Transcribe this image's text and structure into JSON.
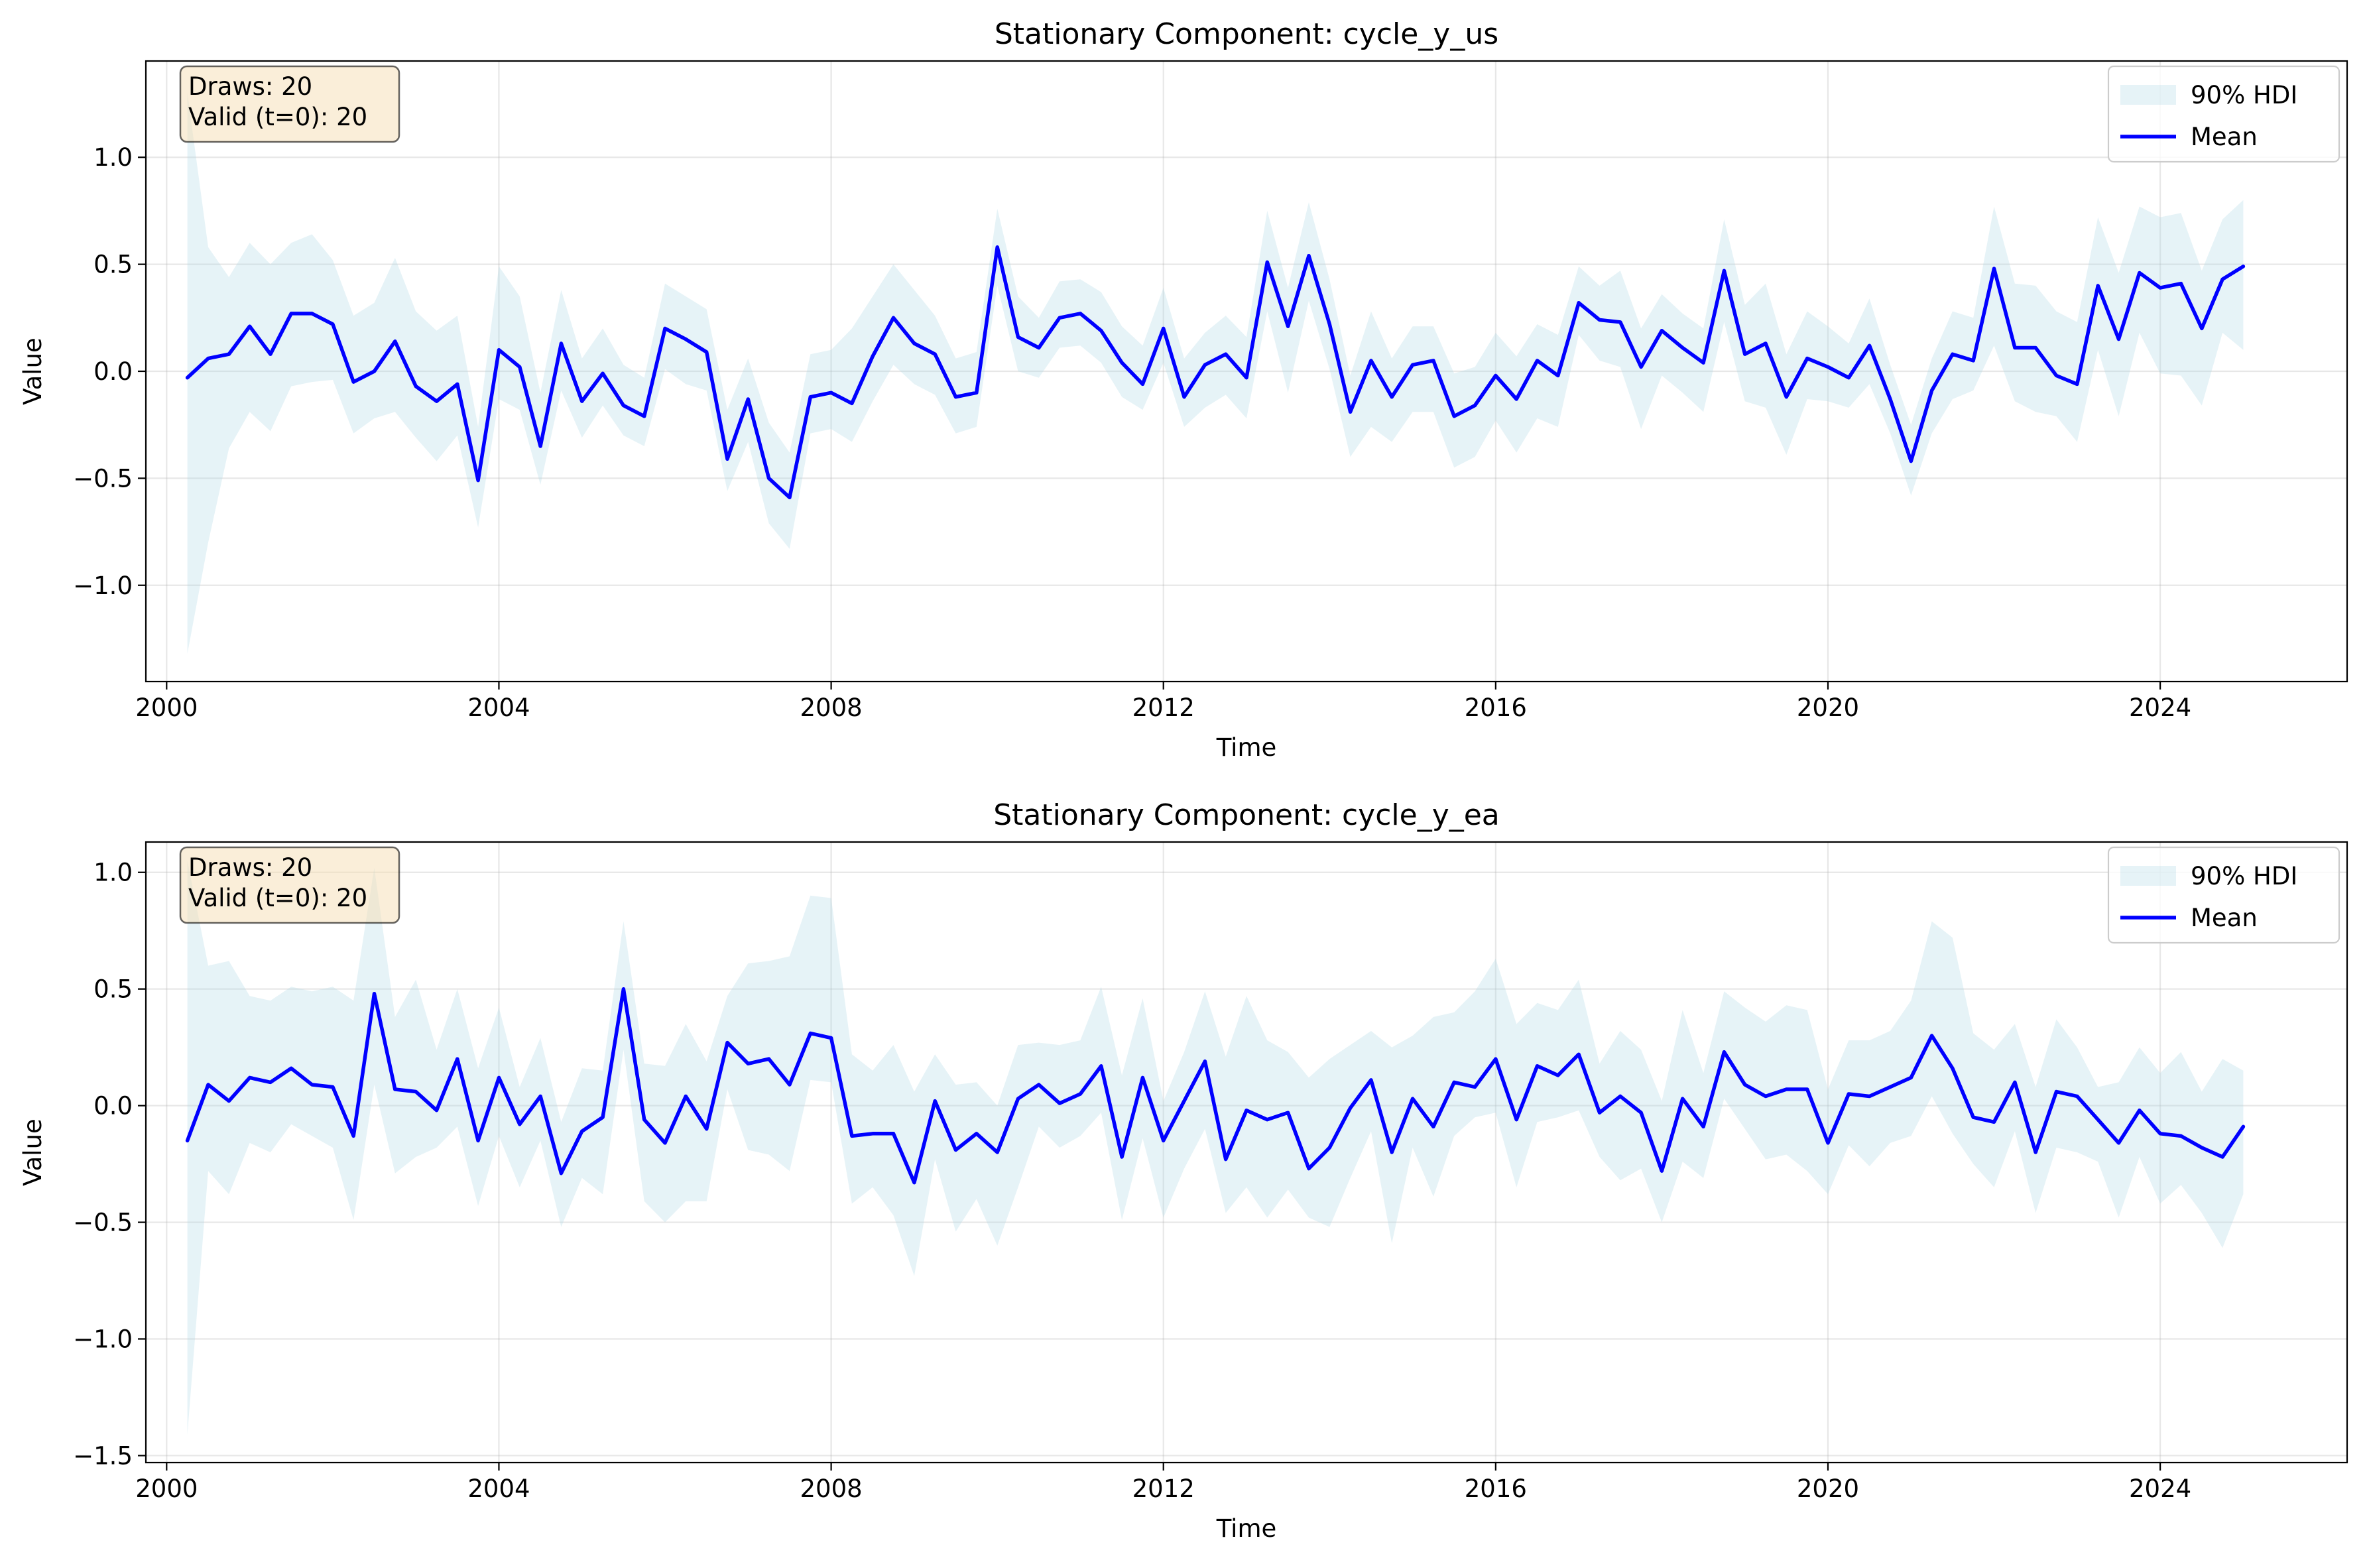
{
  "chart_data": [
    {
      "type": "line",
      "title": "Stationary Component: cycle_y_us",
      "xlabel": "Time",
      "ylabel": "Value",
      "xlim": [
        1999.75,
        2026.25
      ],
      "ylim": [
        -1.45,
        1.45
      ],
      "xticks": [
        2000,
        2004,
        2008,
        2012,
        2016,
        2020,
        2024
      ],
      "xtick_labels": [
        "2000",
        "2004",
        "2008",
        "2012",
        "2016",
        "2020",
        "2024"
      ],
      "yticks": [
        -1.0,
        -0.5,
        0.0,
        0.5,
        1.0
      ],
      "ytick_labels": [
        "−1.0",
        "−0.5",
        "0.0",
        "0.5",
        "1.0"
      ],
      "grid": true,
      "legend_position": "top-right",
      "info_box": {
        "position": "top-left",
        "lines": [
          "Draws: 20",
          "Valid (t=0): 20"
        ]
      },
      "x": [
        2000.25,
        2000.5,
        2000.75,
        2001,
        2001.25,
        2001.5,
        2001.75,
        2002,
        2002.25,
        2002.5,
        2002.75,
        2003,
        2003.25,
        2003.5,
        2003.75,
        2004,
        2004.25,
        2004.5,
        2004.75,
        2005,
        2005.25,
        2005.5,
        2005.75,
        2006,
        2006.25,
        2006.5,
        2006.75,
        2007,
        2007.25,
        2007.5,
        2007.75,
        2008,
        2008.25,
        2008.5,
        2008.75,
        2009,
        2009.25,
        2009.5,
        2009.75,
        2010,
        2010.25,
        2010.5,
        2010.75,
        2011,
        2011.25,
        2011.5,
        2011.75,
        2012,
        2012.25,
        2012.5,
        2012.75,
        2013,
        2013.25,
        2013.5,
        2013.75,
        2014,
        2014.25,
        2014.5,
        2014.75,
        2015,
        2015.25,
        2015.5,
        2015.75,
        2016,
        2016.25,
        2016.5,
        2016.75,
        2017,
        2017.25,
        2017.5,
        2017.75,
        2018,
        2018.25,
        2018.5,
        2018.75,
        2019,
        2019.25,
        2019.5,
        2019.75,
        2020,
        2020.25,
        2020.5,
        2020.75,
        2021,
        2021.25,
        2021.5,
        2021.75,
        2022,
        2022.25,
        2022.5,
        2022.75,
        2023,
        2023.25,
        2023.5,
        2023.75,
        2024,
        2024.25,
        2024.5,
        2024.75,
        2025
      ],
      "series": [
        {
          "name": "Mean",
          "kind": "line",
          "color": "#0000ff",
          "values": [
            -0.03,
            0.06,
            0.08,
            0.21,
            0.08,
            0.27,
            0.27,
            0.22,
            -0.05,
            0.0,
            0.14,
            -0.07,
            -0.14,
            -0.06,
            -0.51,
            0.1,
            0.02,
            -0.35,
            0.13,
            -0.14,
            -0.01,
            -0.16,
            -0.21,
            0.2,
            0.15,
            0.09,
            -0.41,
            -0.13,
            -0.5,
            -0.59,
            -0.12,
            -0.1,
            -0.15,
            0.07,
            0.25,
            0.13,
            0.08,
            -0.12,
            -0.1,
            0.58,
            0.16,
            0.11,
            0.25,
            0.27,
            0.19,
            0.04,
            -0.06,
            0.2,
            -0.12,
            0.03,
            0.08,
            -0.03,
            0.51,
            0.21,
            0.54,
            0.22,
            -0.19,
            0.05,
            -0.12,
            0.03,
            0.05,
            -0.21,
            -0.16,
            -0.02,
            -0.13,
            0.05,
            -0.02,
            0.32,
            0.24,
            0.23,
            0.02,
            0.19,
            0.11,
            0.04,
            0.47,
            0.08,
            0.13,
            -0.12,
            0.06,
            0.02,
            -0.03,
            0.12,
            -0.13,
            -0.42,
            -0.09,
            0.08,
            0.05,
            0.48,
            0.11,
            0.11,
            -0.02,
            -0.06,
            0.4,
            0.15,
            0.46,
            0.39,
            0.41,
            0.2,
            0.43,
            0.49
          ]
        },
        {
          "name": "90% HDI",
          "kind": "band",
          "color": "#add8e6",
          "upper": [
            1.3,
            0.58,
            0.44,
            0.6,
            0.5,
            0.6,
            0.64,
            0.52,
            0.26,
            0.32,
            0.53,
            0.28,
            0.19,
            0.26,
            -0.26,
            0.49,
            0.35,
            -0.1,
            0.38,
            0.06,
            0.2,
            0.03,
            -0.03,
            0.41,
            0.35,
            0.29,
            -0.18,
            0.06,
            -0.24,
            -0.38,
            0.08,
            0.1,
            0.2,
            0.35,
            0.5,
            0.38,
            0.26,
            0.06,
            0.09,
            0.76,
            0.35,
            0.25,
            0.42,
            0.43,
            0.37,
            0.21,
            0.12,
            0.39,
            0.06,
            0.18,
            0.26,
            0.16,
            0.75,
            0.39,
            0.79,
            0.43,
            -0.02,
            0.28,
            0.06,
            0.21,
            0.21,
            -0.01,
            0.02,
            0.18,
            0.07,
            0.22,
            0.17,
            0.49,
            0.4,
            0.47,
            0.2,
            0.36,
            0.27,
            0.2,
            0.71,
            0.31,
            0.41,
            0.08,
            0.28,
            0.21,
            0.13,
            0.34,
            0.03,
            -0.25,
            0.06,
            0.28,
            0.25,
            0.77,
            0.41,
            0.4,
            0.28,
            0.23,
            0.72,
            0.46,
            0.77,
            0.72,
            0.74,
            0.47,
            0.71,
            0.8
          ]
        },
        {
          "name": "HDI lower",
          "kind": "band_lower",
          "lower": [
            -1.32,
            -0.8,
            -0.36,
            -0.19,
            -0.28,
            -0.07,
            -0.05,
            -0.04,
            -0.29,
            -0.22,
            -0.19,
            -0.31,
            -0.42,
            -0.3,
            -0.73,
            -0.13,
            -0.18,
            -0.53,
            -0.09,
            -0.31,
            -0.16,
            -0.3,
            -0.35,
            0.01,
            -0.06,
            -0.09,
            -0.56,
            -0.33,
            -0.71,
            -0.83,
            -0.29,
            -0.27,
            -0.33,
            -0.14,
            0.03,
            -0.06,
            -0.11,
            -0.29,
            -0.26,
            0.4,
            0.0,
            -0.03,
            0.11,
            0.12,
            0.04,
            -0.12,
            -0.18,
            0.04,
            -0.26,
            -0.17,
            -0.11,
            -0.22,
            0.28,
            -0.1,
            0.33,
            0.01,
            -0.4,
            -0.26,
            -0.33,
            -0.19,
            -0.19,
            -0.45,
            -0.4,
            -0.23,
            -0.38,
            -0.22,
            -0.26,
            0.17,
            0.05,
            0.02,
            -0.27,
            -0.02,
            -0.1,
            -0.19,
            0.23,
            -0.14,
            -0.17,
            -0.39,
            -0.13,
            -0.14,
            -0.17,
            -0.06,
            -0.29,
            -0.58,
            -0.29,
            -0.13,
            -0.09,
            0.12,
            -0.14,
            -0.19,
            -0.21,
            -0.33,
            0.1,
            -0.21,
            0.18,
            -0.01,
            -0.02,
            -0.16,
            0.18,
            0.1
          ]
        }
      ]
    },
    {
      "type": "line",
      "title": "Stationary Component: cycle_y_ea",
      "xlabel": "Time",
      "ylabel": "Value",
      "xlim": [
        1999.75,
        2026.25
      ],
      "ylim": [
        -1.53,
        1.13
      ],
      "xticks": [
        2000,
        2004,
        2008,
        2012,
        2016,
        2020,
        2024
      ],
      "xtick_labels": [
        "2000",
        "2004",
        "2008",
        "2012",
        "2016",
        "2020",
        "2024"
      ],
      "yticks": [
        -1.5,
        -1.0,
        -0.5,
        0.0,
        0.5,
        1.0
      ],
      "ytick_labels": [
        "−1.5",
        "−1.0",
        "−0.5",
        "0.0",
        "0.5",
        "1.0"
      ],
      "grid": true,
      "legend_position": "top-right",
      "info_box": {
        "position": "top-left",
        "lines": [
          "Draws: 20",
          "Valid (t=0): 20"
        ]
      },
      "x": [
        2000.25,
        2000.5,
        2000.75,
        2001,
        2001.25,
        2001.5,
        2001.75,
        2002,
        2002.25,
        2002.5,
        2002.75,
        2003,
        2003.25,
        2003.5,
        2003.75,
        2004,
        2004.25,
        2004.5,
        2004.75,
        2005,
        2005.25,
        2005.5,
        2005.75,
        2006,
        2006.25,
        2006.5,
        2006.75,
        2007,
        2007.25,
        2007.5,
        2007.75,
        2008,
        2008.25,
        2008.5,
        2008.75,
        2009,
        2009.25,
        2009.5,
        2009.75,
        2010,
        2010.25,
        2010.5,
        2010.75,
        2011,
        2011.25,
        2011.5,
        2011.75,
        2012,
        2012.25,
        2012.5,
        2012.75,
        2013,
        2013.25,
        2013.5,
        2013.75,
        2014,
        2014.25,
        2014.5,
        2014.75,
        2015,
        2015.25,
        2015.5,
        2015.75,
        2016,
        2016.25,
        2016.5,
        2016.75,
        2017,
        2017.25,
        2017.5,
        2017.75,
        2018,
        2018.25,
        2018.5,
        2018.75,
        2019,
        2019.25,
        2019.5,
        2019.75,
        2020,
        2020.25,
        2020.5,
        2020.75,
        2021,
        2021.25,
        2021.5,
        2021.75,
        2022,
        2022.25,
        2022.5,
        2022.75,
        2023,
        2023.25,
        2023.5,
        2023.75,
        2024,
        2024.25,
        2024.5,
        2024.75,
        2025
      ],
      "series": [
        {
          "name": "Mean",
          "kind": "line",
          "color": "#0000ff",
          "values": [
            -0.15,
            0.09,
            0.02,
            0.12,
            0.1,
            0.16,
            0.09,
            0.08,
            -0.13,
            0.48,
            0.07,
            0.06,
            -0.02,
            0.2,
            -0.15,
            0.12,
            -0.08,
            0.04,
            -0.29,
            -0.11,
            -0.05,
            0.5,
            -0.06,
            -0.16,
            0.04,
            -0.1,
            0.27,
            0.18,
            0.2,
            0.09,
            0.31,
            0.29,
            -0.13,
            -0.12,
            -0.12,
            -0.33,
            0.02,
            -0.19,
            -0.12,
            -0.2,
            0.03,
            0.09,
            0.01,
            0.05,
            0.17,
            -0.22,
            0.12,
            -0.15,
            0.02,
            0.19,
            -0.23,
            -0.02,
            -0.06,
            -0.03,
            -0.27,
            -0.18,
            -0.01,
            0.11,
            -0.2,
            0.03,
            -0.09,
            0.1,
            0.08,
            0.2,
            -0.06,
            0.17,
            0.13,
            0.22,
            -0.03,
            0.04,
            -0.03,
            -0.28,
            0.03,
            -0.09,
            0.23,
            0.09,
            0.04,
            0.07,
            0.07,
            -0.16,
            0.05,
            0.04,
            0.08,
            0.12,
            0.3,
            0.16,
            -0.05,
            -0.07,
            0.1,
            -0.2,
            0.06,
            0.04,
            -0.06,
            -0.16,
            -0.02,
            -0.12,
            -0.13,
            -0.18,
            -0.22,
            -0.09
          ]
        },
        {
          "name": "90% HDI",
          "kind": "band",
          "color": "#add8e6",
          "upper": [
            1.05,
            0.6,
            0.62,
            0.47,
            0.45,
            0.51,
            0.49,
            0.51,
            0.45,
            1.02,
            0.38,
            0.54,
            0.24,
            0.5,
            0.16,
            0.42,
            0.08,
            0.29,
            -0.07,
            0.16,
            0.15,
            0.79,
            0.18,
            0.17,
            0.35,
            0.19,
            0.47,
            0.61,
            0.62,
            0.64,
            0.9,
            0.89,
            0.22,
            0.15,
            0.26,
            0.06,
            0.22,
            0.09,
            0.1,
            0.0,
            0.26,
            0.27,
            0.26,
            0.28,
            0.51,
            0.13,
            0.46,
            0.02,
            0.23,
            0.49,
            0.21,
            0.47,
            0.28,
            0.23,
            0.12,
            0.2,
            0.26,
            0.32,
            0.25,
            0.3,
            0.38,
            0.4,
            0.49,
            0.63,
            0.35,
            0.44,
            0.41,
            0.54,
            0.18,
            0.32,
            0.24,
            0.02,
            0.41,
            0.14,
            0.49,
            0.42,
            0.36,
            0.43,
            0.41,
            0.07,
            0.28,
            0.28,
            0.32,
            0.45,
            0.79,
            0.72,
            0.31,
            0.24,
            0.35,
            0.08,
            0.37,
            0.25,
            0.08,
            0.1,
            0.25,
            0.14,
            0.23,
            0.06,
            0.2,
            0.15
          ]
        },
        {
          "name": "HDI lower",
          "kind": "band_lower",
          "lower": [
            -1.41,
            -0.28,
            -0.38,
            -0.16,
            -0.2,
            -0.08,
            -0.13,
            -0.18,
            -0.49,
            0.09,
            -0.29,
            -0.22,
            -0.18,
            -0.09,
            -0.43,
            -0.13,
            -0.35,
            -0.15,
            -0.52,
            -0.31,
            -0.38,
            0.24,
            -0.41,
            -0.5,
            -0.41,
            -0.41,
            0.07,
            -0.19,
            -0.21,
            -0.28,
            0.11,
            0.1,
            -0.42,
            -0.35,
            -0.47,
            -0.73,
            -0.23,
            -0.54,
            -0.4,
            -0.6,
            -0.35,
            -0.09,
            -0.18,
            -0.13,
            -0.03,
            -0.49,
            -0.14,
            -0.48,
            -0.27,
            -0.1,
            -0.46,
            -0.35,
            -0.48,
            -0.36,
            -0.48,
            -0.52,
            -0.31,
            -0.11,
            -0.59,
            -0.18,
            -0.39,
            -0.13,
            -0.05,
            -0.03,
            -0.35,
            -0.07,
            -0.05,
            -0.02,
            -0.22,
            -0.32,
            -0.27,
            -0.5,
            -0.24,
            -0.31,
            0.03,
            -0.1,
            -0.23,
            -0.21,
            -0.28,
            -0.38,
            -0.17,
            -0.26,
            -0.16,
            -0.13,
            0.04,
            -0.12,
            -0.25,
            -0.35,
            -0.11,
            -0.46,
            -0.18,
            -0.2,
            -0.24,
            -0.48,
            -0.22,
            -0.42,
            -0.34,
            -0.46,
            -0.61,
            -0.38
          ]
        }
      ]
    }
  ]
}
